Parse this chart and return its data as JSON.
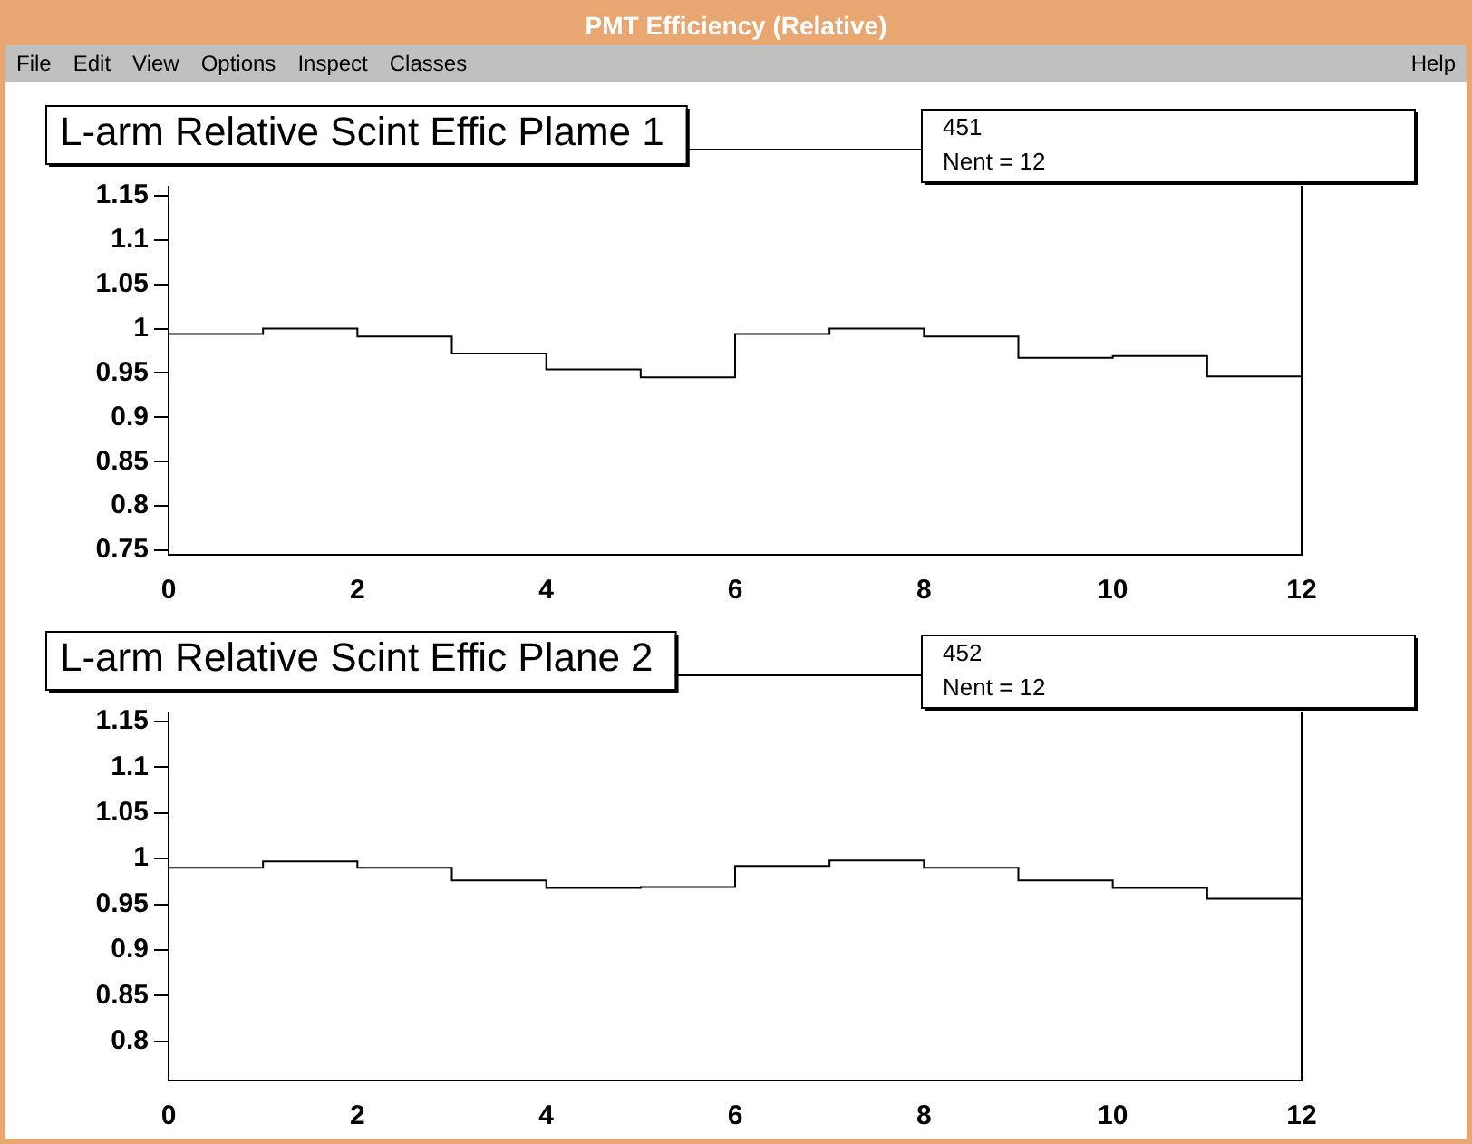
{
  "chart_data": [
    {
      "type": "other",
      "title": "PMT Efficiency (Relative)",
      "annotations": [
        "File",
        "Edit",
        "View",
        "Options",
        "Inspect",
        "Classes",
        "Help"
      ]
    },
    {
      "type": "histogram",
      "title": "L-arm Relative Scint Effic Plame 1",
      "bins": [
        0,
        1,
        2,
        3,
        4,
        5,
        6,
        7,
        8,
        9,
        10,
        11,
        12
      ],
      "values": [
        0.994,
        1.0,
        0.991,
        0.972,
        0.954,
        0.945,
        0.994,
        1.0,
        0.991,
        0.967,
        0.969,
        0.946
      ],
      "color": "#000000",
      "xlim": [
        0,
        12
      ],
      "xticks": [
        0,
        2,
        4,
        6,
        8,
        10,
        12
      ],
      "ylim": [
        0.745,
        1.16
      ],
      "yticks": [
        0.75,
        0.8,
        0.85,
        0.9,
        0.95,
        1,
        1.05,
        1.1,
        1.15
      ],
      "grid": false,
      "legend": false,
      "annotations": [
        "451",
        "Nent = 12"
      ]
    },
    {
      "type": "histogram",
      "title": "L-arm Relative Scint Effic Plane 2",
      "bins": [
        0,
        1,
        2,
        3,
        4,
        5,
        6,
        7,
        8,
        9,
        10,
        11,
        12
      ],
      "values": [
        0.99,
        0.997,
        0.99,
        0.976,
        0.968,
        0.969,
        0.992,
        0.998,
        0.99,
        0.976,
        0.968,
        0.956
      ],
      "color": "#000000",
      "xlim": [
        0,
        12
      ],
      "xticks": [
        0,
        2,
        4,
        6,
        8,
        10,
        12
      ],
      "ylim": [
        0.757,
        1.16
      ],
      "yticks": [
        0.8,
        0.85,
        0.9,
        0.95,
        1,
        1.05,
        1.1,
        1.15
      ],
      "grid": false,
      "legend": false,
      "annotations": [
        "452",
        "Nent = 12"
      ]
    }
  ]
}
